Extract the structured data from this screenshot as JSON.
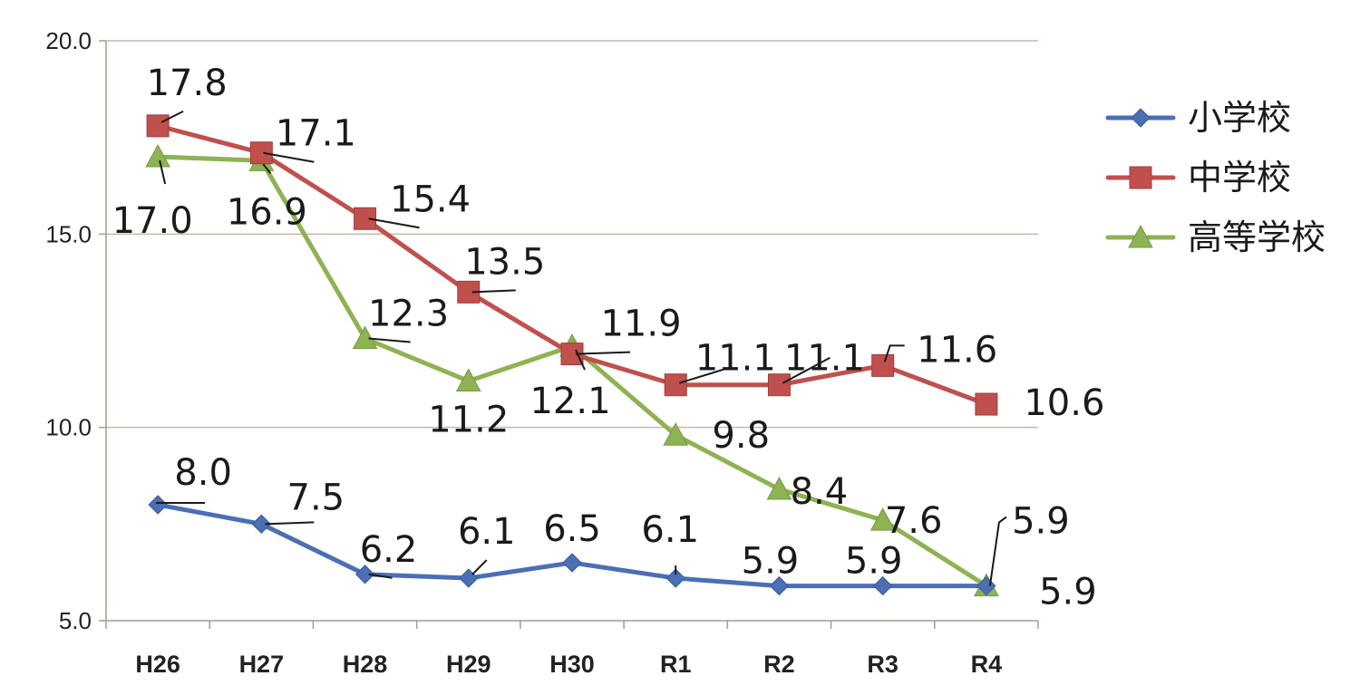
{
  "chart_data": {
    "type": "line",
    "categories": [
      "H26",
      "H27",
      "H28",
      "H29",
      "H30",
      "R1",
      "R2",
      "R3",
      "R4"
    ],
    "yticks": [
      "20.0",
      "15.0",
      "10.0",
      "5.0"
    ],
    "ylim": [
      5,
      20
    ],
    "grid": "horizontal",
    "legend_position": "right",
    "series": [
      {
        "name": "小学校",
        "color": "#4a6fb5",
        "marker": "diamond",
        "values": [
          8.0,
          7.5,
          6.2,
          6.1,
          6.5,
          6.1,
          5.9,
          5.9,
          5.9
        ],
        "labels": [
          "8.0",
          "7.5",
          "6.2",
          "6.1",
          "6.5",
          "6.1",
          "5.9",
          "5.9",
          "5.9"
        ]
      },
      {
        "name": "中学校",
        "color": "#c0504d",
        "marker": "square",
        "values": [
          17.8,
          17.1,
          15.4,
          13.5,
          11.9,
          11.1,
          11.1,
          11.6,
          10.6
        ],
        "labels": [
          "17.8",
          "17.1",
          "15.4",
          "13.5",
          "11.9",
          "11.1",
          "11.1",
          "11.6",
          "10.6"
        ]
      },
      {
        "name": "高等学校",
        "color": "#8db352",
        "marker": "triangle",
        "values": [
          17.0,
          16.9,
          12.3,
          11.2,
          12.1,
          9.8,
          8.4,
          7.6,
          5.9
        ],
        "labels": [
          "17.0",
          "16.9",
          "12.3",
          "11.2",
          "12.1",
          "9.8",
          "8.4",
          "7.6",
          "5.9"
        ]
      }
    ]
  }
}
